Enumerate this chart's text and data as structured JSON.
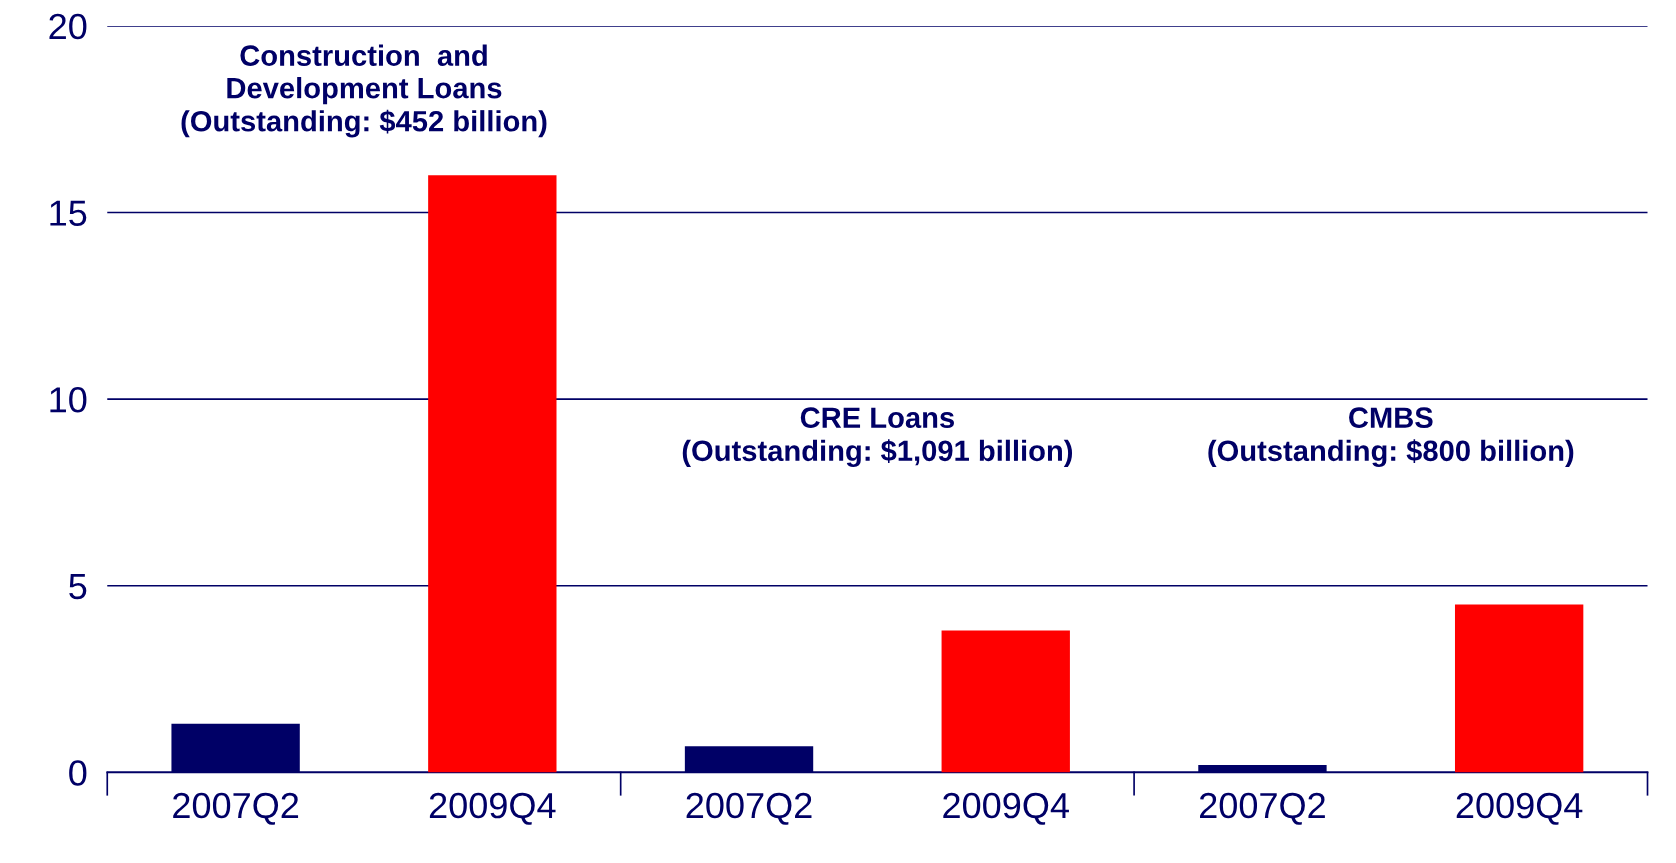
{
  "chart_data": {
    "type": "bar",
    "categories": [
      "2007Q2",
      "2009Q4",
      "2007Q2",
      "2009Q4",
      "2007Q2",
      "2009Q4"
    ],
    "values": [
      1.3,
      16,
      0.7,
      3.8,
      0.2,
      4.5
    ],
    "colors": [
      "#000066",
      "#ff0000",
      "#000066",
      "#ff0000",
      "#000066",
      "#ff0000"
    ],
    "ylim": [
      0,
      20
    ],
    "yticks": [
      0,
      5,
      10,
      15,
      20
    ],
    "grid": "y",
    "annotations": [
      "Construction  and\nDevelopment Loans\n(Outstanding: $452 billion)",
      "CRE Loans\n(Outstanding: $1,091 billion)",
      "CMBS\n(Outstanding: $800 billion)"
    ]
  }
}
